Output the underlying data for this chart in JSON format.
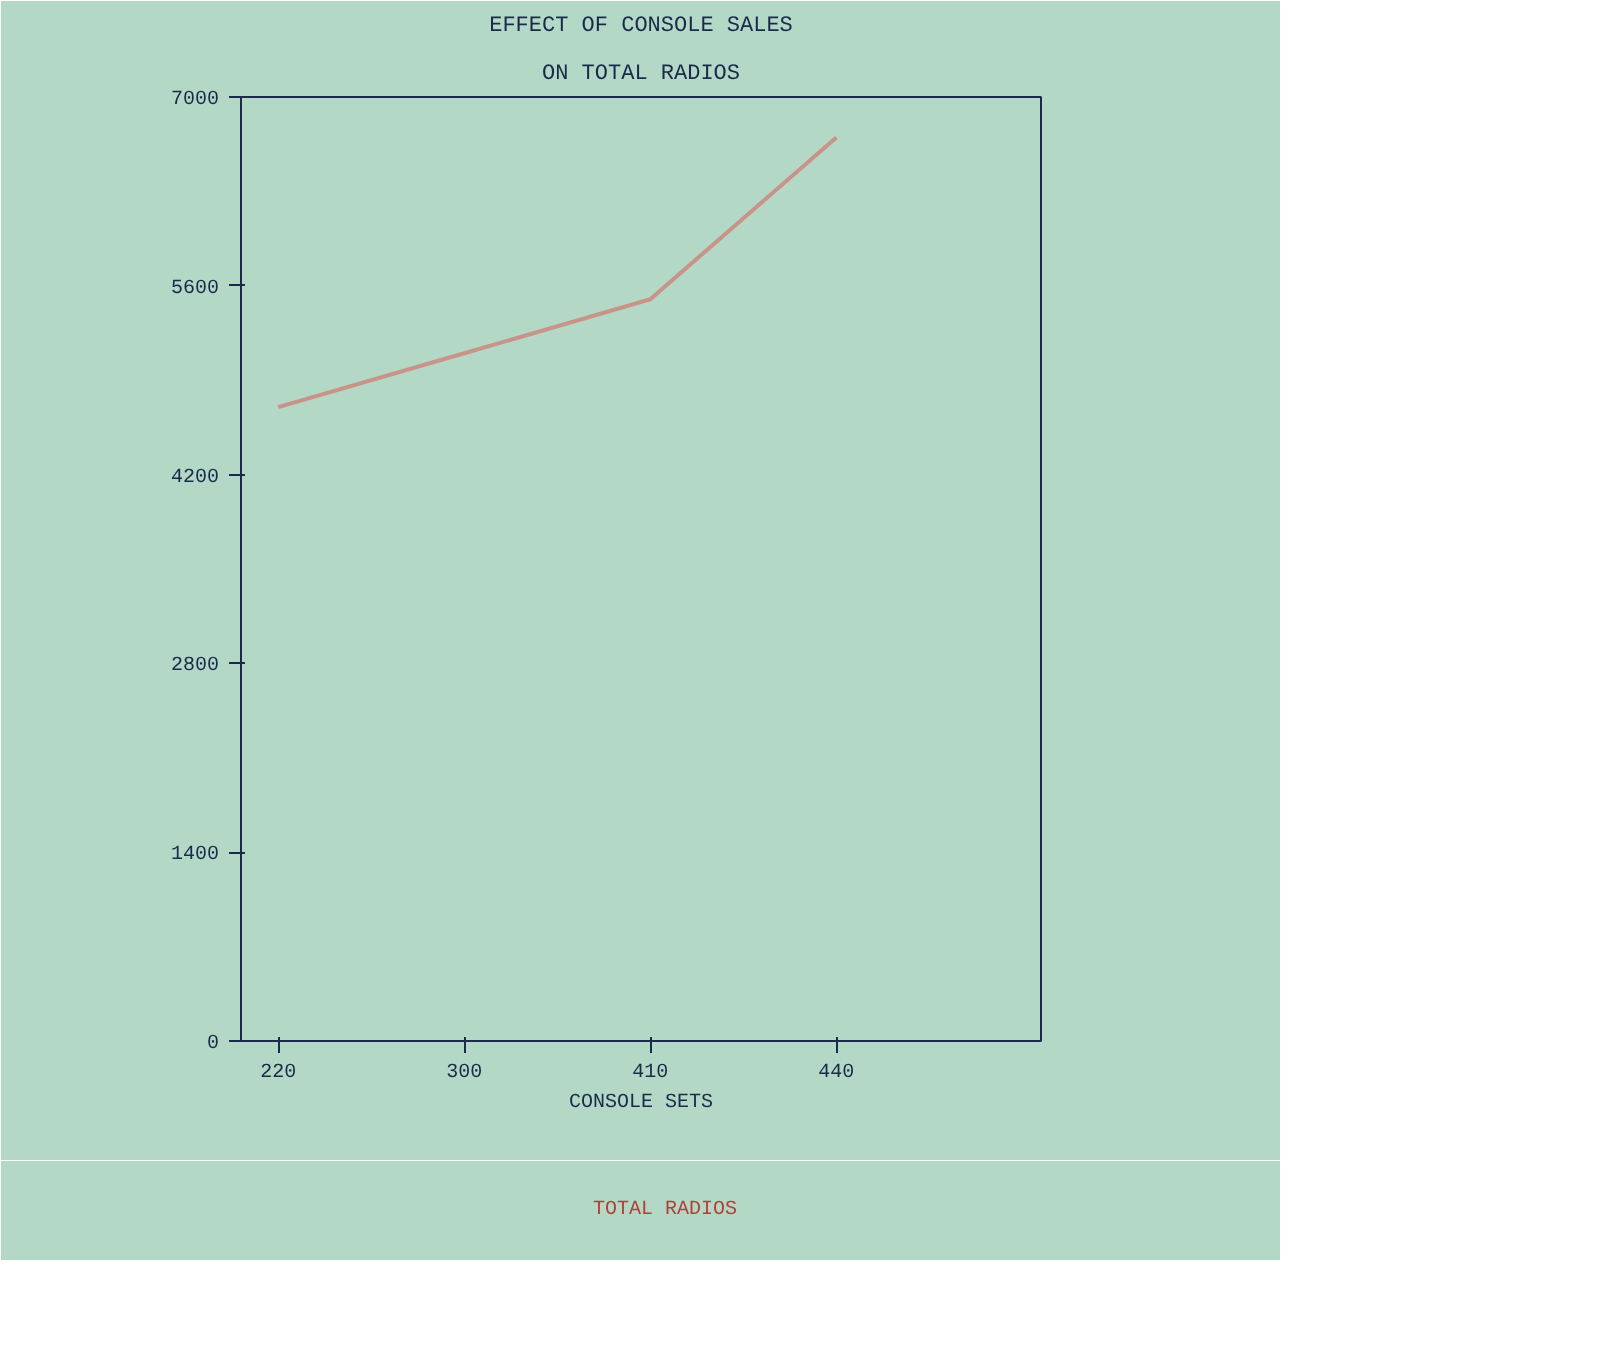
{
  "chart_data": {
    "type": "line",
    "title": "EFFECT OF CONSOLE SALES",
    "subtitle": "ON TOTAL RADIOS",
    "xlabel": "CONSOLE SETS",
    "categories": [
      "220",
      "300",
      "410",
      "440"
    ],
    "series": [
      {
        "name": "TOTAL RADIOS",
        "color": "#c8948a",
        "values": [
          4700,
          5100,
          5500,
          6700
        ]
      }
    ],
    "ylim": [
      0,
      7000
    ],
    "yticks": [
      0,
      1400,
      2800,
      4200,
      5600,
      7000
    ],
    "grid": false,
    "legend": "bottom",
    "marker": "none",
    "line_style": "solid"
  }
}
